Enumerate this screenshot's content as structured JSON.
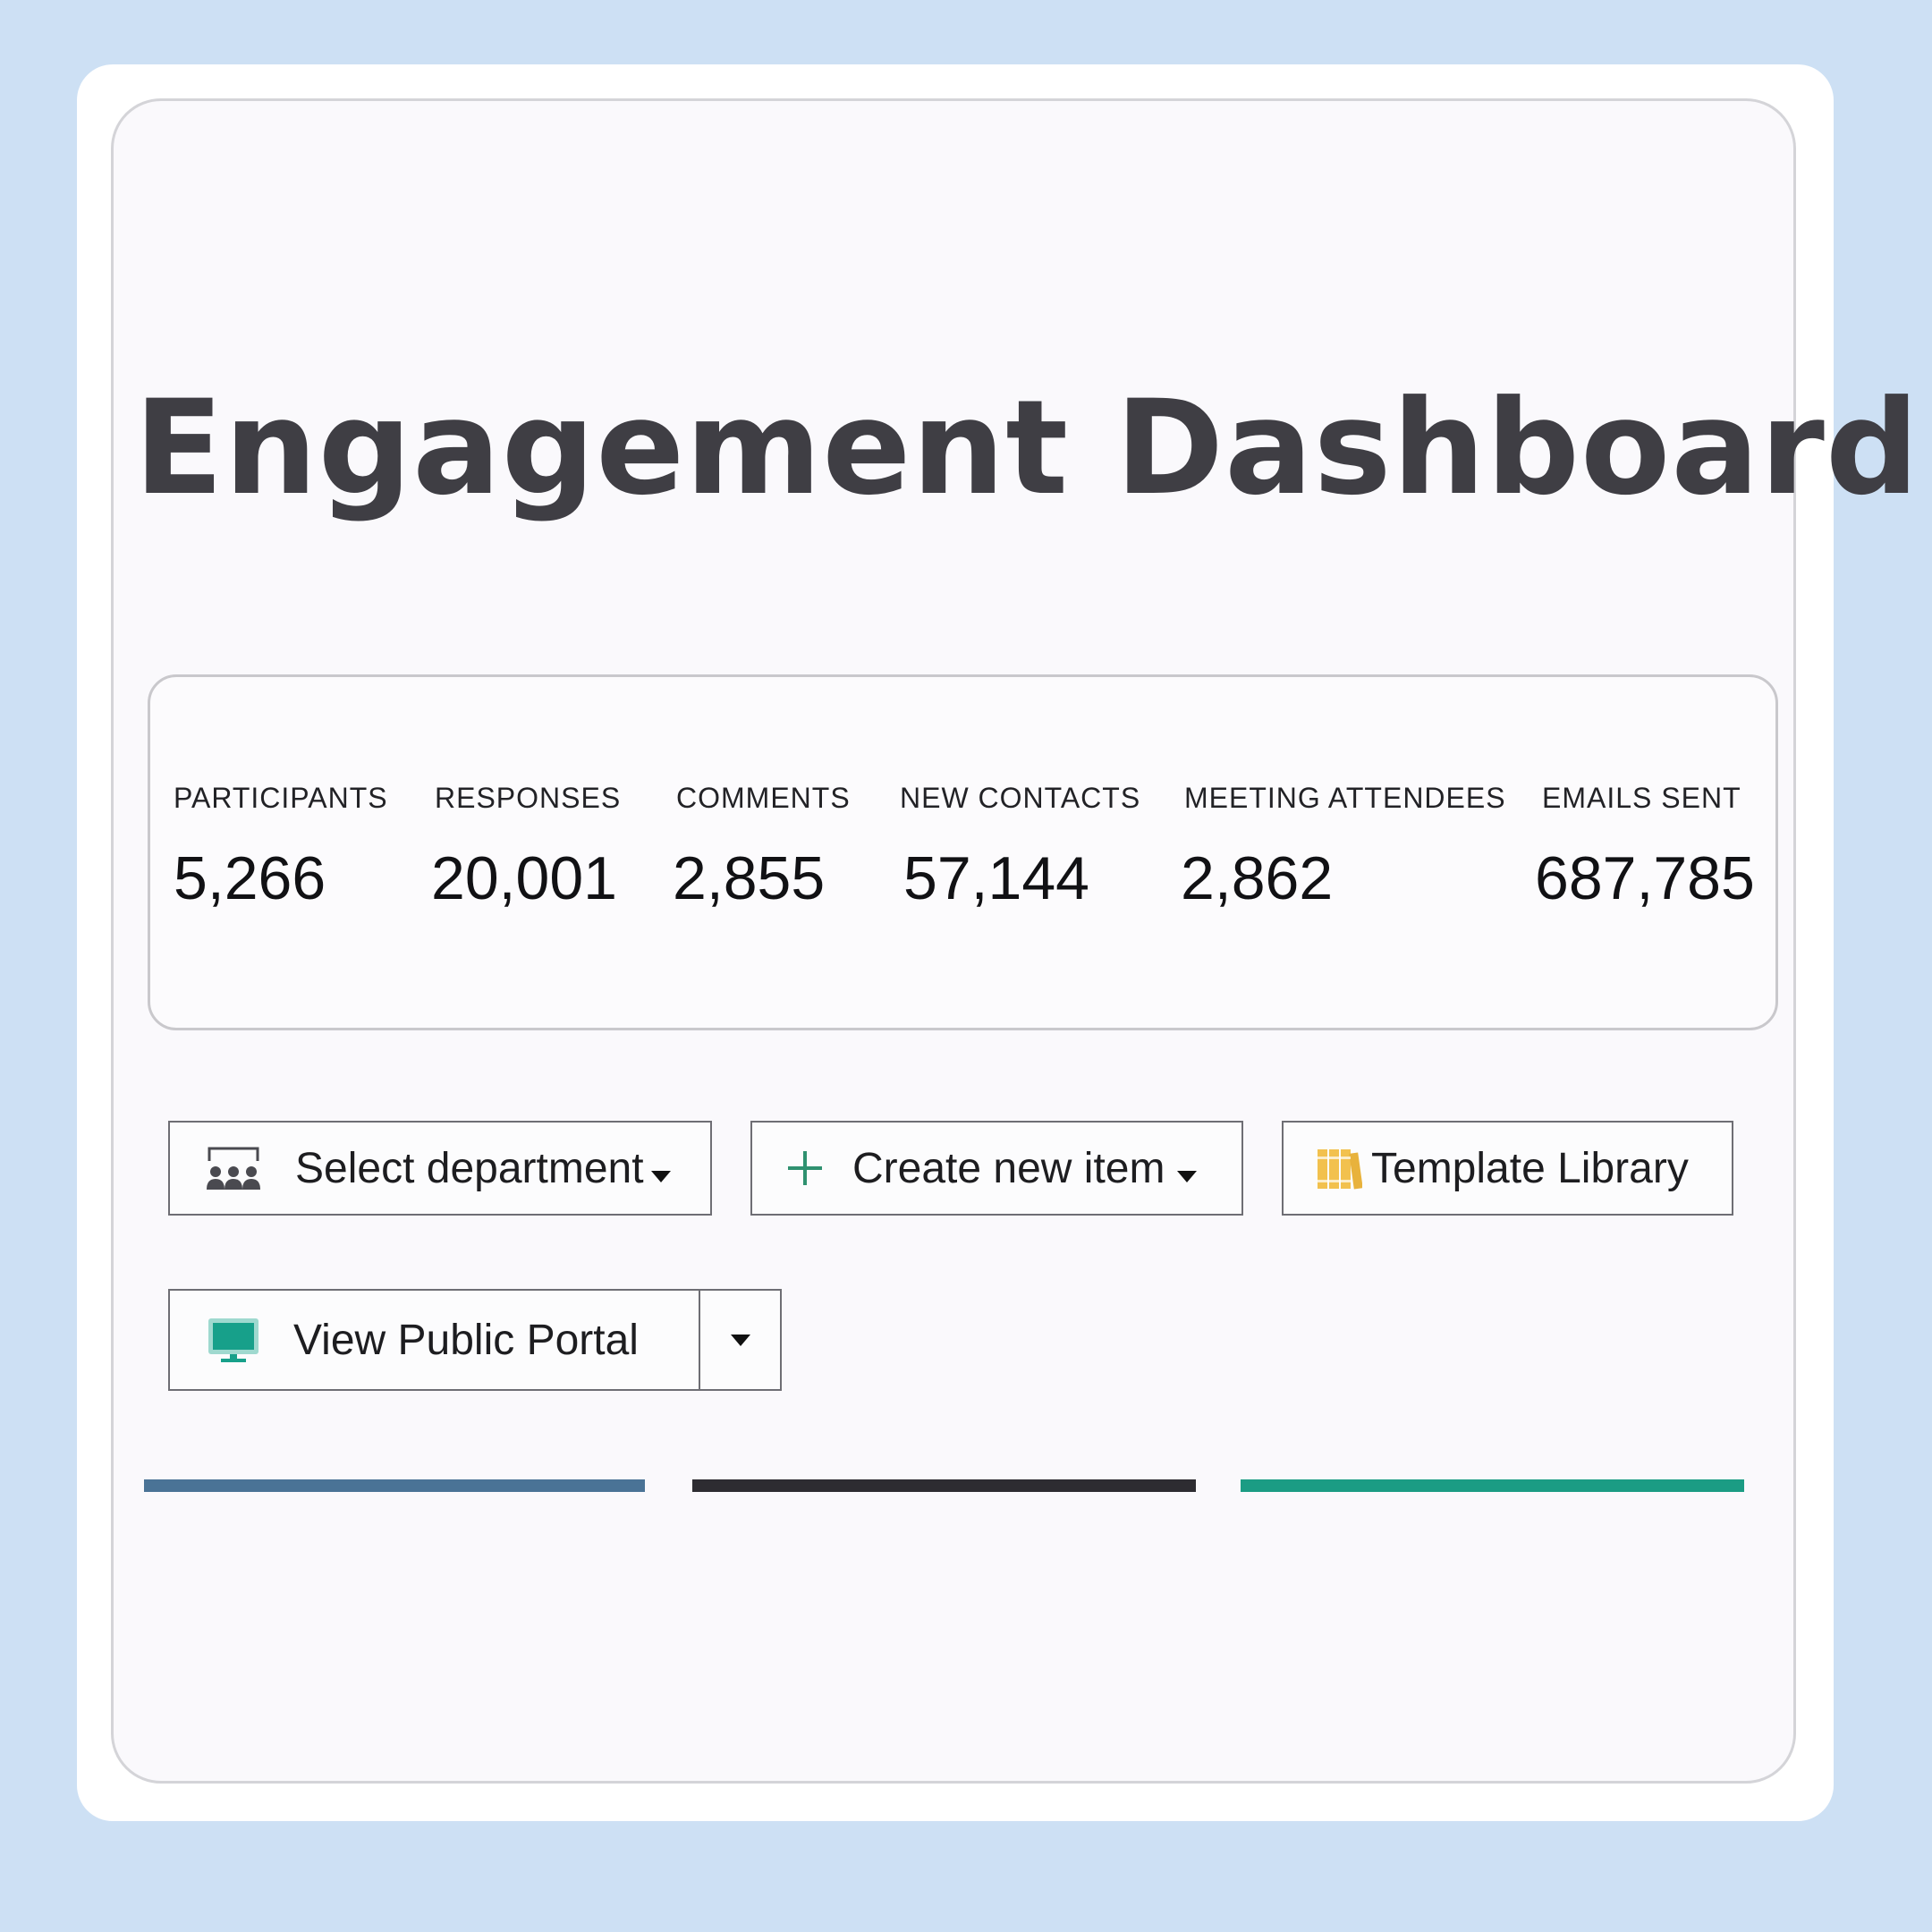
{
  "header": {
    "title": "Engagement Dashboard"
  },
  "stats": [
    {
      "label": "PARTICIPANTS",
      "value": "5,266"
    },
    {
      "label": "RESPONSES",
      "value": "20,001"
    },
    {
      "label": "COMMENTS",
      "value": "2,855"
    },
    {
      "label": "NEW CONTACTS",
      "value": "57,144"
    },
    {
      "label": "MEETING ATTENDEES",
      "value": "2,862"
    },
    {
      "label": "EMAILS SENT",
      "value": "687,785"
    }
  ],
  "toolbar": {
    "select_department": {
      "label": "Select department",
      "icon": "department-icon"
    },
    "create_new_item": {
      "label": "Create new item",
      "icon": "plus-icon"
    },
    "template_library": {
      "label": "Template Library",
      "icon": "library-icon"
    },
    "view_public_portal": {
      "label": "View Public Portal",
      "icon": "monitor-icon"
    }
  },
  "colors": {
    "background": "#cde0f4",
    "title_text": "#3f3e44",
    "accent_blue": "#4a7396",
    "accent_dark": "#2d2c31",
    "accent_teal": "#1b9c84",
    "plus_green": "#2f9170",
    "library_yellow": "#f2c14e",
    "monitor_teal": "#17a08a"
  },
  "accent_bars": [
    "blue",
    "dark",
    "teal"
  ]
}
